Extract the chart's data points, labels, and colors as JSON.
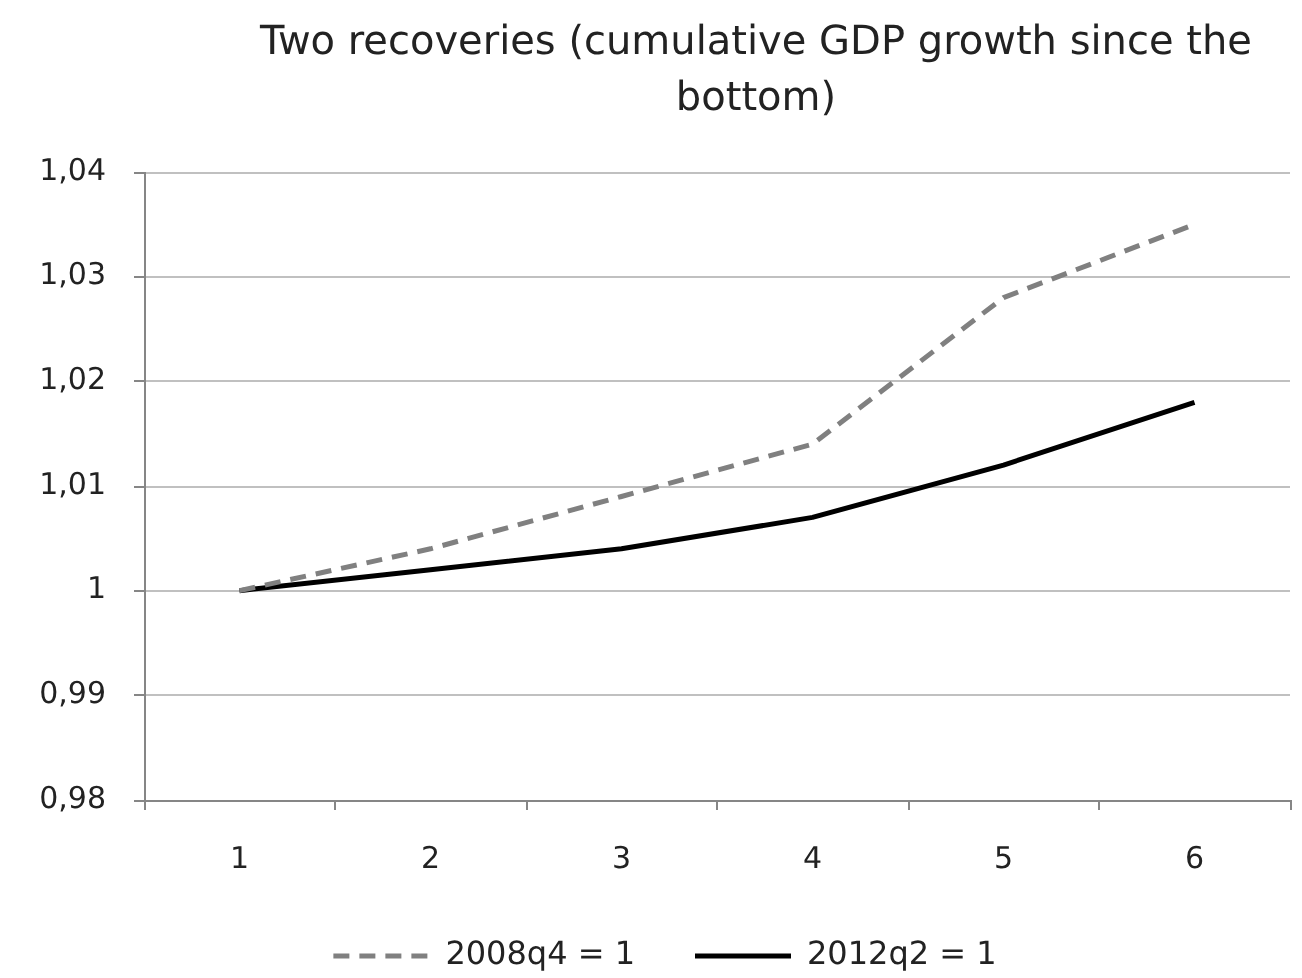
{
  "chart_data": {
    "type": "line",
    "title": "Two recoveries (cumulative GDP growth since the bottom)",
    "categories": [
      "1",
      "2",
      "3",
      "4",
      "5",
      "6"
    ],
    "series": [
      {
        "name": "2008q4 = 1",
        "color": "#808080",
        "line_style": "dashed",
        "values": [
          1.0,
          1.004,
          1.009,
          1.014,
          1.028,
          1.035
        ]
      },
      {
        "name": "2012q2 = 1",
        "color": "#000000",
        "line_style": "solid",
        "values": [
          1.0,
          1.002,
          1.004,
          1.007,
          1.012,
          1.018
        ]
      }
    ],
    "ylim": [
      0.98,
      1.04
    ],
    "yticks": [
      {
        "value": 0.98,
        "label": "0,98"
      },
      {
        "value": 0.99,
        "label": "0,99"
      },
      1,
      {
        "value": 1.01,
        "label": "1,01"
      },
      {
        "value": 1.02,
        "label": "1,02"
      },
      {
        "value": 1.03,
        "label": "1,03"
      },
      {
        "value": 1.04,
        "label": "1,04"
      }
    ],
    "grid": "y",
    "legend": "bottom",
    "marker": "none"
  }
}
